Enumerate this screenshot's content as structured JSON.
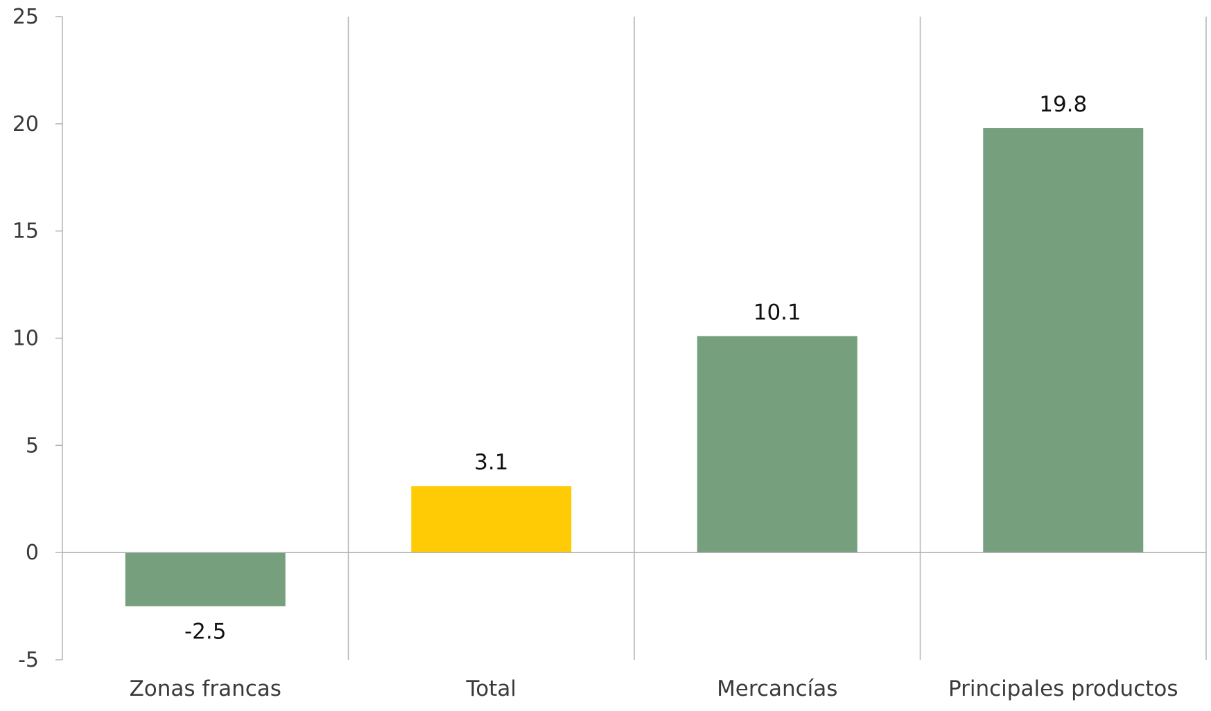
{
  "chart_data": {
    "type": "bar",
    "title": "",
    "xlabel": "",
    "ylabel": "",
    "categories": [
      "Zonas francas",
      "Total",
      "Mercancías",
      "Principales productos"
    ],
    "values": [
      -2.5,
      3.1,
      10.1,
      19.8
    ],
    "data_labels": [
      "-2.5",
      "3.1",
      "10.1",
      "19.8"
    ],
    "bar_colors": [
      "#76a07d",
      "#fecb05",
      "#76a07d",
      "#76a07d"
    ],
    "ylim": [
      -5,
      25
    ],
    "yticks": [
      -5,
      0,
      5,
      10,
      15,
      20,
      25
    ],
    "ytick_labels": [
      "-5",
      "0",
      "5",
      "10",
      "15",
      "20",
      "25"
    ],
    "grid": false,
    "category_separators": true,
    "legend": "none",
    "axis_color": "#b3b3b3"
  }
}
